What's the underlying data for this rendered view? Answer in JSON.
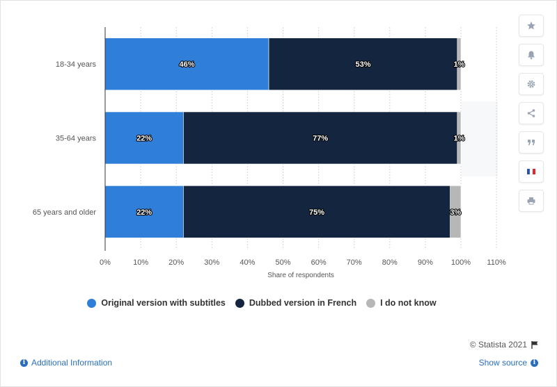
{
  "chart_data": {
    "type": "bar",
    "orientation": "horizontal",
    "stacked": true,
    "categories": [
      "18-34 years",
      "35-64 years",
      "65 years and older"
    ],
    "series": [
      {
        "name": "Original version with subtitles",
        "color": "#2f7ed8",
        "values": [
          46,
          22,
          22
        ]
      },
      {
        "name": "Dubbed version in French",
        "color": "#14263f",
        "values": [
          53,
          77,
          75
        ]
      },
      {
        "name": "I do not know",
        "color": "#b7b7b7",
        "values": [
          1,
          1,
          3
        ]
      }
    ],
    "data_labels": [
      [
        "46%",
        "53%",
        "1%"
      ],
      [
        "22%",
        "77%",
        "1%"
      ],
      [
        "22%",
        "75%",
        "3%"
      ]
    ],
    "xlabel": "Share of respondents",
    "xlim": [
      0,
      110
    ],
    "xticks": [
      0,
      10,
      20,
      30,
      40,
      50,
      60,
      70,
      80,
      90,
      100,
      110
    ],
    "xtick_labels": [
      "0%",
      "10%",
      "20%",
      "30%",
      "40%",
      "50%",
      "60%",
      "70%",
      "80%",
      "90%",
      "100%",
      "110%"
    ],
    "grid": true,
    "legend_position": "bottom"
  },
  "legend": {
    "items": [
      {
        "label": "Original version with subtitles",
        "color": "#2f7ed8"
      },
      {
        "label": "Dubbed version in French",
        "color": "#14263f"
      },
      {
        "label": "I do not know",
        "color": "#b7b7b7"
      }
    ]
  },
  "footer": {
    "credit": "© Statista 2021",
    "additional_info": "Additional Information",
    "show_source": "Show source"
  },
  "toolbar": {
    "buttons": [
      {
        "icon": "star-icon"
      },
      {
        "icon": "bell-icon"
      },
      {
        "icon": "gear-icon"
      },
      {
        "icon": "share-icon"
      },
      {
        "icon": "quote-icon"
      },
      {
        "icon": "french-flag-icon"
      },
      {
        "icon": "print-icon"
      }
    ]
  }
}
